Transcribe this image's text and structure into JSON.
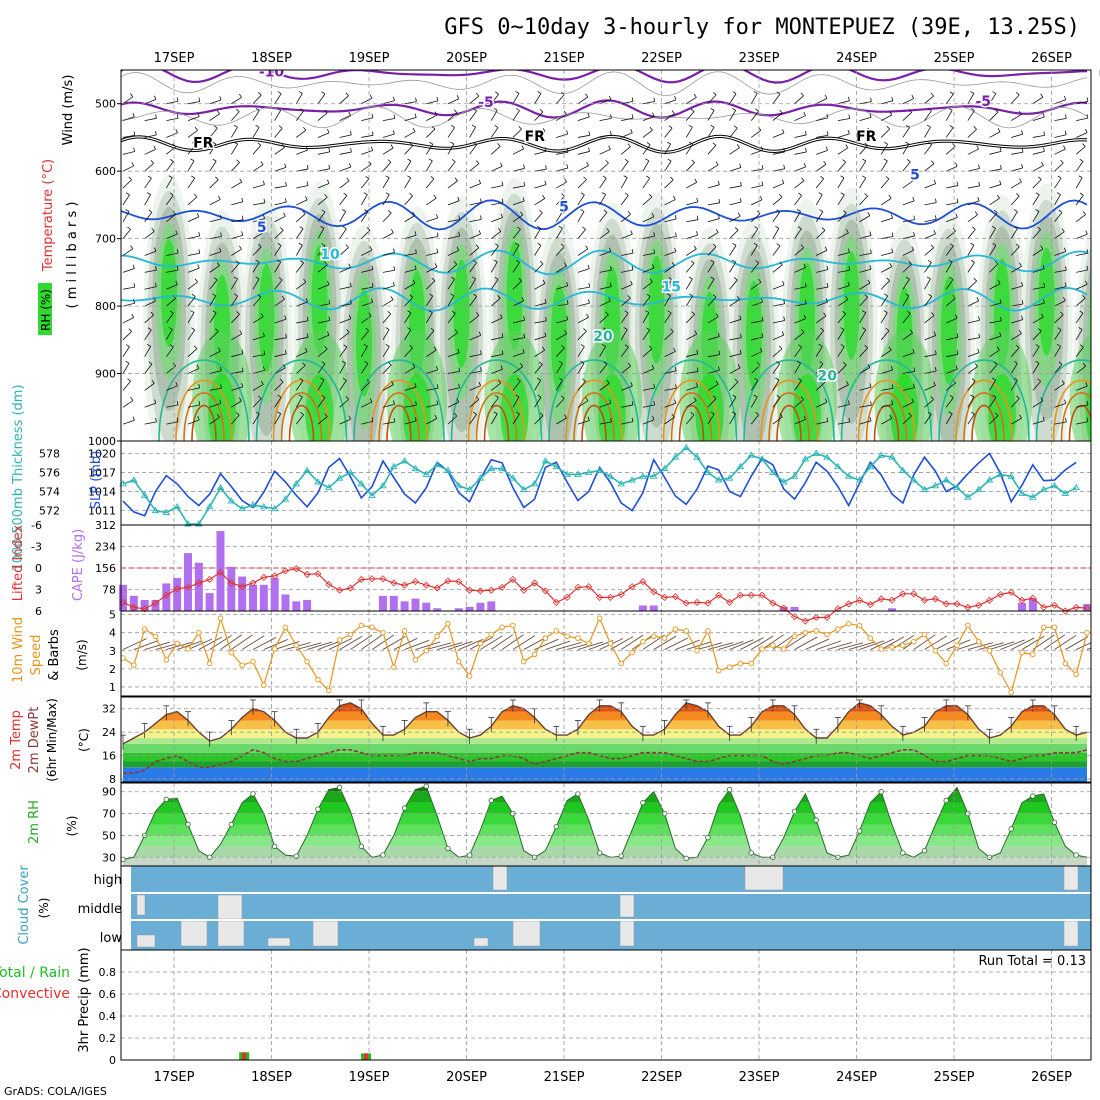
{
  "title": "GFS 0~10day 3-hourly for MONTEPUEZ (39E, 13.25S)",
  "footer": "GrADS: COLA/IGES",
  "dates": [
    "17SEP",
    "18SEP",
    "19SEP",
    "20SEP",
    "21SEP",
    "22SEP",
    "23SEP",
    "24SEP",
    "25SEP",
    "26SEP"
  ],
  "colors": {
    "grid": "#a0a0a0",
    "purple": "#7a1fa8",
    "blue": "#1f4fd8",
    "cyan": "#27b8d8",
    "teal": "#1fb89a",
    "orange": "#e8941a",
    "green": "#22cc22",
    "cloud": "#6aaed6"
  },
  "chart_data": [
    {
      "type": "heatmap",
      "panel": "upper-air",
      "ylabel_wind": "Wind (m/s)",
      "ylabel_temp": "Temperature (°C)",
      "ylabel_rh": "RH (%)",
      "ylabel_units": "( m i l l i b a r s )",
      "yticks": [
        500,
        600,
        700,
        800,
        900,
        1000
      ],
      "ylim": [
        450,
        1000
      ],
      "isotherm_labels": [
        {
          "text": "-10",
          "day": 1.0,
          "p": 460,
          "color": "#7a1fa8"
        },
        {
          "text": "-5",
          "day": 3.2,
          "p": 505,
          "color": "#7a1fa8"
        },
        {
          "text": "-5",
          "day": 8.3,
          "p": 503,
          "color": "#7a1fa8"
        },
        {
          "text": "FR",
          "day": 0.3,
          "p": 565,
          "color": "#000000"
        },
        {
          "text": "FR",
          "day": 3.7,
          "p": 555,
          "color": "#000000"
        },
        {
          "text": "FR",
          "day": 7.1,
          "p": 555,
          "color": "#000000"
        },
        {
          "text": "5",
          "day": 0.9,
          "p": 690,
          "color": "#1f4fd8"
        },
        {
          "text": "5",
          "day": 4.0,
          "p": 660,
          "color": "#1f4fd8"
        },
        {
          "text": "5",
          "day": 7.6,
          "p": 612,
          "color": "#1f4fd8"
        },
        {
          "text": "10",
          "day": 1.6,
          "p": 730,
          "color": "#27b8d8"
        },
        {
          "text": "15",
          "day": 5.1,
          "p": 778,
          "color": "#27b8d8"
        },
        {
          "text": "20",
          "day": 4.4,
          "p": 852,
          "color": "#1fb89a"
        },
        {
          "text": "20",
          "day": 6.7,
          "p": 910,
          "color": "#1fb89a"
        }
      ]
    },
    {
      "type": "line",
      "panel": "thickness-slp",
      "ylabel_left": "1000-500mb Thickness (dm)",
      "ylabel_right": "SLP (mb)",
      "yticks_left": [
        572,
        574,
        576,
        578
      ],
      "yticks_right": [
        1011,
        1014,
        1017,
        1020
      ],
      "series": [
        {
          "name": "SLP",
          "color": "#1f4fd8",
          "values": [
            1012.5,
            1010.8,
            1010.2,
            1014.0,
            1016.5,
            1015.2,
            1013.2,
            1011.8,
            1013.6,
            1016.8,
            1014.8,
            1012.6,
            1011.5,
            1013.9,
            1017.2,
            1015.5,
            1013.4,
            1011.6,
            1013.8,
            1017.8,
            1019.2,
            1016.3,
            1013.0,
            1014.8,
            1018.8,
            1016.2,
            1013.6,
            1012.2,
            1014.6,
            1018.6,
            1017.2,
            1013.8,
            1012.4,
            1016.0,
            1019.0,
            1018.5,
            1014.6,
            1011.5,
            1012.8,
            1017.8,
            1018.6,
            1015.5,
            1012.6,
            1014.0,
            1017.8,
            1015.4,
            1012.2,
            1011.0,
            1013.8,
            1019.0,
            1016.2,
            1013.3,
            1012.0,
            1014.4,
            1018.0,
            1017.4,
            1014.0,
            1013.2,
            1016.4,
            1019.2,
            1018.2,
            1014.4,
            1012.8,
            1015.4,
            1018.6,
            1017.2,
            1014.8,
            1011.8,
            1015.3,
            1018.6,
            1016.6,
            1013.6,
            1012.2,
            1016.6,
            1019.4,
            1017.2,
            1014.0,
            1014.9,
            1016.8,
            1018.5,
            1020.0,
            1016.9,
            1012.4,
            1015.0,
            1018.2,
            1015.7,
            1015.8,
            1017.4,
            1018.6
          ]
        },
        {
          "name": "Thickness",
          "color": "#2cb5b5",
          "values": [
            574.8,
            575.2,
            573.6,
            572.0,
            571.8,
            572.4,
            570.6,
            570.6,
            572.4,
            574.4,
            573.0,
            572.2,
            572.6,
            572.4,
            572.2,
            573.2,
            574.8,
            576.2,
            575.0,
            574.4,
            575.4,
            576.0,
            574.8,
            573.6,
            574.6,
            576.6,
            577.2,
            576.4,
            575.8,
            576.8,
            576.2,
            574.6,
            574.2,
            575.4,
            576.4,
            576.4,
            575.4,
            574.2,
            574.8,
            577.2,
            576.6,
            575.8,
            575.8,
            576.0,
            576.2,
            575.6,
            574.8,
            575.2,
            575.6,
            575.6,
            576.4,
            577.6,
            578.6,
            577.6,
            576.0,
            575.2,
            575.4,
            576.6,
            577.8,
            577.4,
            576.0,
            575.0,
            575.6,
            577.4,
            578.0,
            577.6,
            576.6,
            575.6,
            575.2,
            576.6,
            577.8,
            577.6,
            576.2,
            575.2,
            574.2,
            574.6,
            575.2,
            574.4,
            573.4,
            574.2,
            575.2,
            575.8,
            575.6,
            573.8,
            573.4,
            574.2,
            574.6,
            573.8,
            574.4
          ]
        }
      ]
    },
    {
      "type": "bar",
      "panel": "lifted-index-cape",
      "ylabel_left": "Lifted Index",
      "ylabel_right": "CAPE (J/kg)",
      "yticks_left": [
        -6,
        -3,
        0,
        3,
        6
      ],
      "yticks_right": [
        78,
        156,
        234,
        312
      ],
      "cape": [
        95,
        55,
        40,
        40,
        100,
        120,
        210,
        175,
        65,
        290,
        160,
        125,
        95,
        95,
        120,
        60,
        35,
        40,
        0,
        0,
        0,
        0,
        0,
        0,
        55,
        55,
        35,
        45,
        30,
        10,
        0,
        10,
        15,
        30,
        35,
        0,
        0,
        0,
        0,
        0,
        0,
        0,
        0,
        0,
        0,
        0,
        0,
        0,
        20,
        20,
        0,
        0,
        0,
        0,
        0,
        0,
        0,
        0,
        0,
        0,
        0,
        15,
        15,
        0,
        0,
        0,
        0,
        0,
        0,
        0,
        0,
        10,
        0,
        0,
        0,
        0,
        0,
        0,
        0,
        0,
        0,
        0,
        0,
        30,
        45,
        0,
        0,
        0,
        0,
        25
      ],
      "lifted_index": [
        4.8,
        5.5,
        5.7,
        4.9,
        3.8,
        2.9,
        2.7,
        2.1,
        1.6,
        0.6,
        2.1,
        2.6,
        2.1,
        1.3,
        1.1,
        0.4,
        0.1,
        0.9,
        0.8,
        2.3,
        3.1,
        2.8,
        1.6,
        1.5,
        1.5,
        2.1,
        2.4,
        1.9,
        2.4,
        2.8,
        1.8,
        1.9,
        3.1,
        3.2,
        3.1,
        2.7,
        1.6,
        3.1,
        2.1,
        3.2,
        4.8,
        4.1,
        2.7,
        2.6,
        4.1,
        4.1,
        3.7,
        2.6,
        1.9,
        3.3,
        4.1,
        4.0,
        4.9,
        4.8,
        4.9,
        3.8,
        4.8,
        3.8,
        3.8,
        3.8,
        4.9,
        5.6,
        6.8,
        7.4,
        6.9,
        6.9,
        5.7,
        5.0,
        4.5,
        5.1,
        4.3,
        4.5,
        3.6,
        3.6,
        4.5,
        4.3,
        5.0,
        5.0,
        5.5,
        5.2,
        4.5,
        3.7,
        3.4,
        4.5,
        4.2,
        5.5,
        5.2,
        6.0,
        5.5,
        5.6
      ]
    },
    {
      "type": "line",
      "panel": "wind-10m",
      "ylabel": "10m Wind Speed & Barbs (m/s)",
      "yticks": [
        1,
        2,
        3,
        4,
        5
      ],
      "ylim": [
        0.5,
        5.2
      ],
      "values": [
        2.6,
        2.2,
        4.2,
        3.8,
        2.5,
        3.4,
        3.1,
        4.0,
        2.3,
        4.8,
        2.9,
        2.2,
        2.4,
        1.1,
        3.1,
        4.3,
        3.3,
        2.4,
        1.4,
        0.8,
        3.6,
        3.9,
        4.4,
        4.3,
        4.0,
        2.1,
        4.1,
        2.5,
        3.0,
        3.8,
        4.5,
        2.4,
        1.6,
        3.4,
        3.9,
        4.3,
        4.4,
        2.4,
        2.8,
        3.7,
        4.1,
        3.8,
        3.7,
        3.4,
        4.8,
        3.4,
        2.3,
        2.9,
        3.5,
        3.8,
        3.7,
        4.2,
        4.1,
        3.0,
        4.1,
        1.9,
        2.1,
        2.3,
        2.3,
        3.1,
        3.3,
        3.1,
        3.8,
        4.0,
        4.1,
        3.9,
        4.2,
        4.5,
        4.4,
        3.7,
        3.1,
        3.2,
        3.3,
        3.5,
        3.9,
        3.0,
        2.3,
        3.3,
        4.4,
        3.5,
        3.0,
        1.8,
        0.7,
        2.9,
        2.8,
        4.3,
        4.3,
        2.3,
        1.7,
        4.0
      ]
    },
    {
      "type": "area",
      "panel": "temp-dewpt",
      "ylabel": "2m Temp 2m DewPt (6hr Min/Max) (°C)",
      "yticks": [
        8,
        16,
        24,
        32
      ],
      "ylim": [
        7,
        36
      ],
      "temp": [
        20,
        22,
        24,
        27,
        30,
        31,
        28,
        24,
        21,
        22,
        25,
        29,
        32,
        31,
        28,
        24,
        22,
        22,
        24,
        29,
        33,
        34,
        32,
        27,
        23,
        23,
        25,
        29,
        31,
        31,
        28,
        24,
        22,
        23,
        26,
        31,
        33,
        32,
        29,
        25,
        23,
        23,
        25,
        30,
        33,
        33,
        31,
        26,
        23,
        23,
        25,
        30,
        34,
        33,
        31,
        26,
        23,
        23,
        26,
        31,
        33,
        33,
        30,
        25,
        22,
        22,
        26,
        31,
        34,
        33,
        30,
        26,
        23,
        24,
        26,
        31,
        33,
        33,
        30,
        25,
        22,
        23,
        26,
        31,
        33,
        33,
        30,
        25,
        23,
        24
      ],
      "dewpt": [
        10,
        10,
        11,
        14,
        15,
        16,
        14,
        12,
        12,
        13,
        14,
        16,
        18,
        17,
        15,
        14,
        14,
        15,
        16,
        17,
        18,
        18,
        17,
        16,
        16,
        16,
        16,
        17,
        17,
        17,
        16,
        15,
        14,
        15,
        15,
        16,
        16,
        15,
        13,
        14,
        15,
        16,
        17,
        17,
        16,
        15,
        15,
        16,
        17,
        17,
        17,
        16,
        15,
        14,
        14,
        15,
        16,
        16,
        16,
        16,
        14,
        13,
        14,
        15,
        16,
        16,
        17,
        17,
        16,
        15,
        16,
        17,
        18,
        18,
        16,
        14,
        14,
        15,
        16,
        16,
        16,
        15,
        14,
        15,
        16,
        16,
        17,
        17,
        17,
        18
      ]
    },
    {
      "type": "area",
      "panel": "rh-2m",
      "ylabel": "2m RH (%)",
      "yticks": [
        30,
        50,
        70,
        90
      ],
      "ylim": [
        22,
        98
      ],
      "values": [
        28,
        30,
        50,
        72,
        83,
        84,
        60,
        36,
        30,
        42,
        60,
        80,
        88,
        70,
        40,
        32,
        31,
        50,
        74,
        92,
        94,
        72,
        40,
        30,
        32,
        50,
        75,
        92,
        95,
        68,
        38,
        30,
        32,
        55,
        82,
        86,
        70,
        36,
        30,
        36,
        58,
        82,
        88,
        64,
        34,
        30,
        31,
        55,
        80,
        90,
        70,
        38,
        29,
        30,
        48,
        78,
        92,
        68,
        34,
        30,
        30,
        48,
        72,
        88,
        64,
        34,
        30,
        32,
        54,
        80,
        90,
        60,
        34,
        30,
        36,
        60,
        82,
        94,
        70,
        38,
        30,
        34,
        56,
        80,
        86,
        88,
        62,
        40,
        32,
        30
      ]
    },
    {
      "type": "bar",
      "panel": "cloud-cover",
      "ylabel": "Cloud Cover (%)",
      "yticks": [
        "high",
        "middle",
        "low"
      ],
      "high": [
        0,
        0,
        0,
        0,
        0,
        0,
        0,
        0,
        0,
        0,
        0,
        0,
        0,
        0,
        0,
        0,
        0,
        0,
        0,
        0,
        0,
        0,
        0,
        0,
        0,
        0,
        0,
        0,
        0,
        0,
        0,
        0,
        0,
        0,
        0,
        0,
        0,
        0,
        0,
        0,
        0,
        0,
        0,
        0,
        0,
        0,
        0,
        0,
        0,
        0,
        0,
        0,
        0,
        0,
        0,
        0,
        0,
        0,
        0,
        0,
        0,
        0,
        0,
        0,
        0,
        0,
        0,
        0,
        0,
        0,
        0,
        0,
        0,
        0,
        0,
        0,
        0,
        0,
        0,
        0,
        0,
        0,
        0,
        0,
        0,
        0,
        0,
        0,
        0,
        0
      ],
      "middle": [
        0,
        0,
        0,
        0,
        0,
        0,
        0,
        0,
        0,
        0,
        0,
        0,
        0,
        0,
        0,
        0,
        0,
        0,
        0,
        0,
        0,
        0,
        0,
        0,
        0,
        0,
        0,
        0,
        0,
        0,
        0,
        0,
        0,
        0,
        0,
        0,
        0,
        0,
        0,
        0,
        0,
        0,
        0,
        0,
        0,
        0,
        0,
        0,
        0,
        0,
        0,
        0,
        0,
        0,
        0,
        0,
        0,
        0,
        0,
        0,
        0,
        0,
        0,
        0,
        0,
        0,
        0,
        0,
        0,
        0,
        0,
        0,
        0,
        0,
        0,
        0,
        0,
        0,
        0,
        0,
        0,
        0,
        0,
        0,
        0,
        0,
        0,
        0,
        0,
        0
      ],
      "low": [
        0,
        0,
        0,
        0,
        0,
        0,
        0,
        0,
        0,
        0,
        0,
        0,
        0,
        0,
        0,
        0,
        0,
        0,
        0,
        0,
        0,
        0,
        0,
        0,
        0,
        0,
        0,
        0,
        0,
        0,
        0,
        0,
        0,
        0,
        0,
        0,
        0,
        0,
        0,
        0,
        0,
        0,
        0,
        0,
        0,
        0,
        0,
        0,
        0,
        0,
        0,
        0,
        0,
        0,
        0,
        0,
        0,
        0,
        0,
        0,
        0,
        0,
        0,
        0,
        0,
        0,
        0,
        0,
        0,
        0,
        0,
        0,
        0,
        0,
        0,
        0,
        0,
        0,
        0,
        0,
        0,
        0,
        0,
        0,
        0,
        0,
        0,
        0,
        0,
        0
      ]
    },
    {
      "type": "bar",
      "panel": "precip",
      "ylabel_total": "Total / Rain",
      "ylabel_conv": "Convective",
      "ylabel": "3hr Precip (mm)",
      "yticks": [
        0,
        0.2,
        0.4,
        0.6,
        0.8
      ],
      "ylim": [
        0,
        1.0
      ],
      "annotation": "Run Total = 0.13",
      "events": [
        {
          "day": 0.72,
          "total": 0.07,
          "convective": 0.03
        },
        {
          "day": 1.97,
          "total": 0.06,
          "convective": 0.03
        }
      ]
    }
  ]
}
